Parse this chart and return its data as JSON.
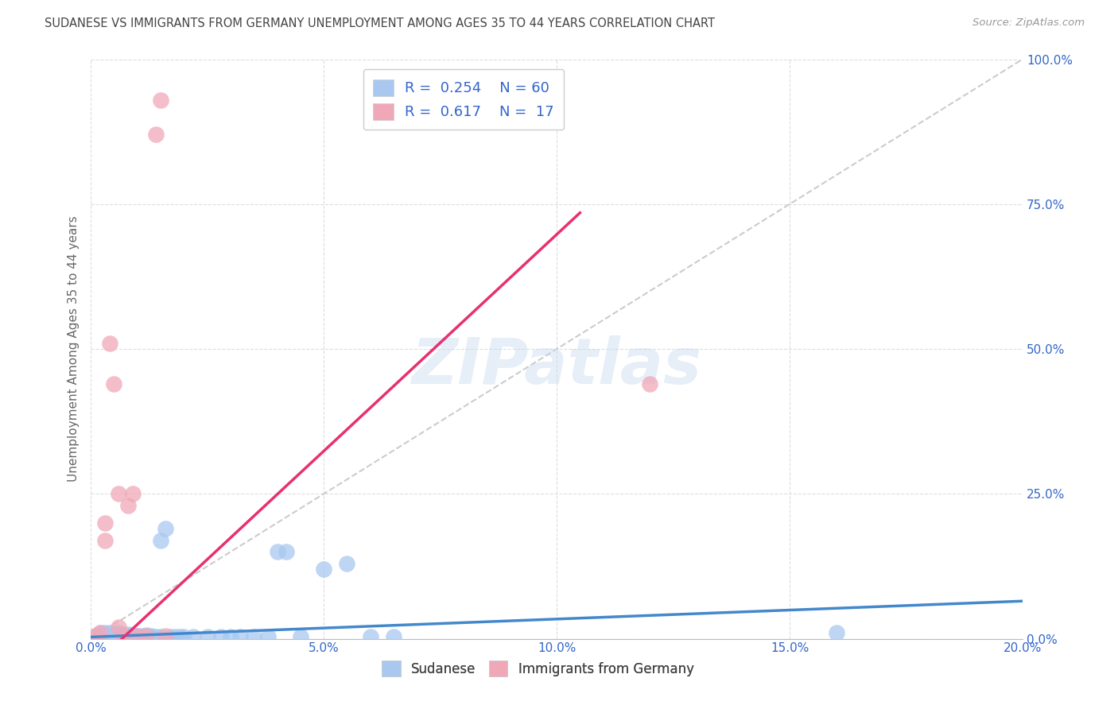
{
  "title": "SUDANESE VS IMMIGRANTS FROM GERMANY UNEMPLOYMENT AMONG AGES 35 TO 44 YEARS CORRELATION CHART",
  "source": "Source: ZipAtlas.com",
  "ylabel": "Unemployment Among Ages 35 to 44 years",
  "xlabel_ticks": [
    "0.0%",
    "5.0%",
    "10.0%",
    "15.0%",
    "20.0%"
  ],
  "xlabel_vals": [
    0.0,
    0.05,
    0.1,
    0.15,
    0.2
  ],
  "ylabel_ticks": [
    "0.0%",
    "25.0%",
    "50.0%",
    "75.0%",
    "100.0%"
  ],
  "ylabel_vals": [
    0.0,
    0.25,
    0.5,
    0.75,
    1.0
  ],
  "xlim": [
    0.0,
    0.2
  ],
  "ylim": [
    0.0,
    1.0
  ],
  "sudanese_R": 0.254,
  "sudanese_N": 60,
  "germany_R": 0.617,
  "germany_N": 17,
  "sudanese_color": "#a8c8f0",
  "germany_color": "#f0a8b8",
  "sudanese_line_color": "#4488cc",
  "germany_line_color": "#e83070",
  "diagonal_color": "#cccccc",
  "background_color": "#ffffff",
  "grid_color": "#dddddd",
  "title_color": "#444444",
  "right_axis_color": "#3366cc",
  "legend_R_color": "#3366cc",
  "sud_x": [
    0.001,
    0.001,
    0.002,
    0.002,
    0.002,
    0.002,
    0.003,
    0.003,
    0.003,
    0.003,
    0.004,
    0.004,
    0.004,
    0.004,
    0.005,
    0.005,
    0.005,
    0.005,
    0.006,
    0.006,
    0.006,
    0.007,
    0.007,
    0.007,
    0.008,
    0.008,
    0.008,
    0.009,
    0.009,
    0.01,
    0.01,
    0.011,
    0.011,
    0.012,
    0.012,
    0.013,
    0.013,
    0.014,
    0.015,
    0.015,
    0.016,
    0.017,
    0.018,
    0.019,
    0.02,
    0.022,
    0.025,
    0.028,
    0.03,
    0.032,
    0.035,
    0.038,
    0.04,
    0.042,
    0.045,
    0.05,
    0.055,
    0.06,
    0.065,
    0.16
  ],
  "sud_y": [
    0.005,
    0.003,
    0.01,
    0.005,
    0.003,
    0.007,
    0.008,
    0.005,
    0.003,
    0.01,
    0.007,
    0.01,
    0.003,
    0.005,
    0.008,
    0.005,
    0.003,
    0.007,
    0.006,
    0.01,
    0.003,
    0.005,
    0.008,
    0.003,
    0.005,
    0.008,
    0.003,
    0.006,
    0.003,
    0.005,
    0.003,
    0.005,
    0.003,
    0.006,
    0.003,
    0.005,
    0.003,
    0.004,
    0.17,
    0.003,
    0.19,
    0.003,
    0.004,
    0.003,
    0.003,
    0.003,
    0.003,
    0.003,
    0.003,
    0.003,
    0.003,
    0.003,
    0.15,
    0.15,
    0.003,
    0.12,
    0.13,
    0.003,
    0.003,
    0.01
  ],
  "ger_x": [
    0.001,
    0.002,
    0.003,
    0.003,
    0.004,
    0.005,
    0.006,
    0.006,
    0.007,
    0.008,
    0.009,
    0.01,
    0.012,
    0.014,
    0.015,
    0.12,
    0.016
  ],
  "ger_y": [
    0.005,
    0.01,
    0.17,
    0.2,
    0.51,
    0.44,
    0.25,
    0.02,
    0.005,
    0.23,
    0.25,
    0.005,
    0.005,
    0.87,
    0.93,
    0.44,
    0.005
  ]
}
